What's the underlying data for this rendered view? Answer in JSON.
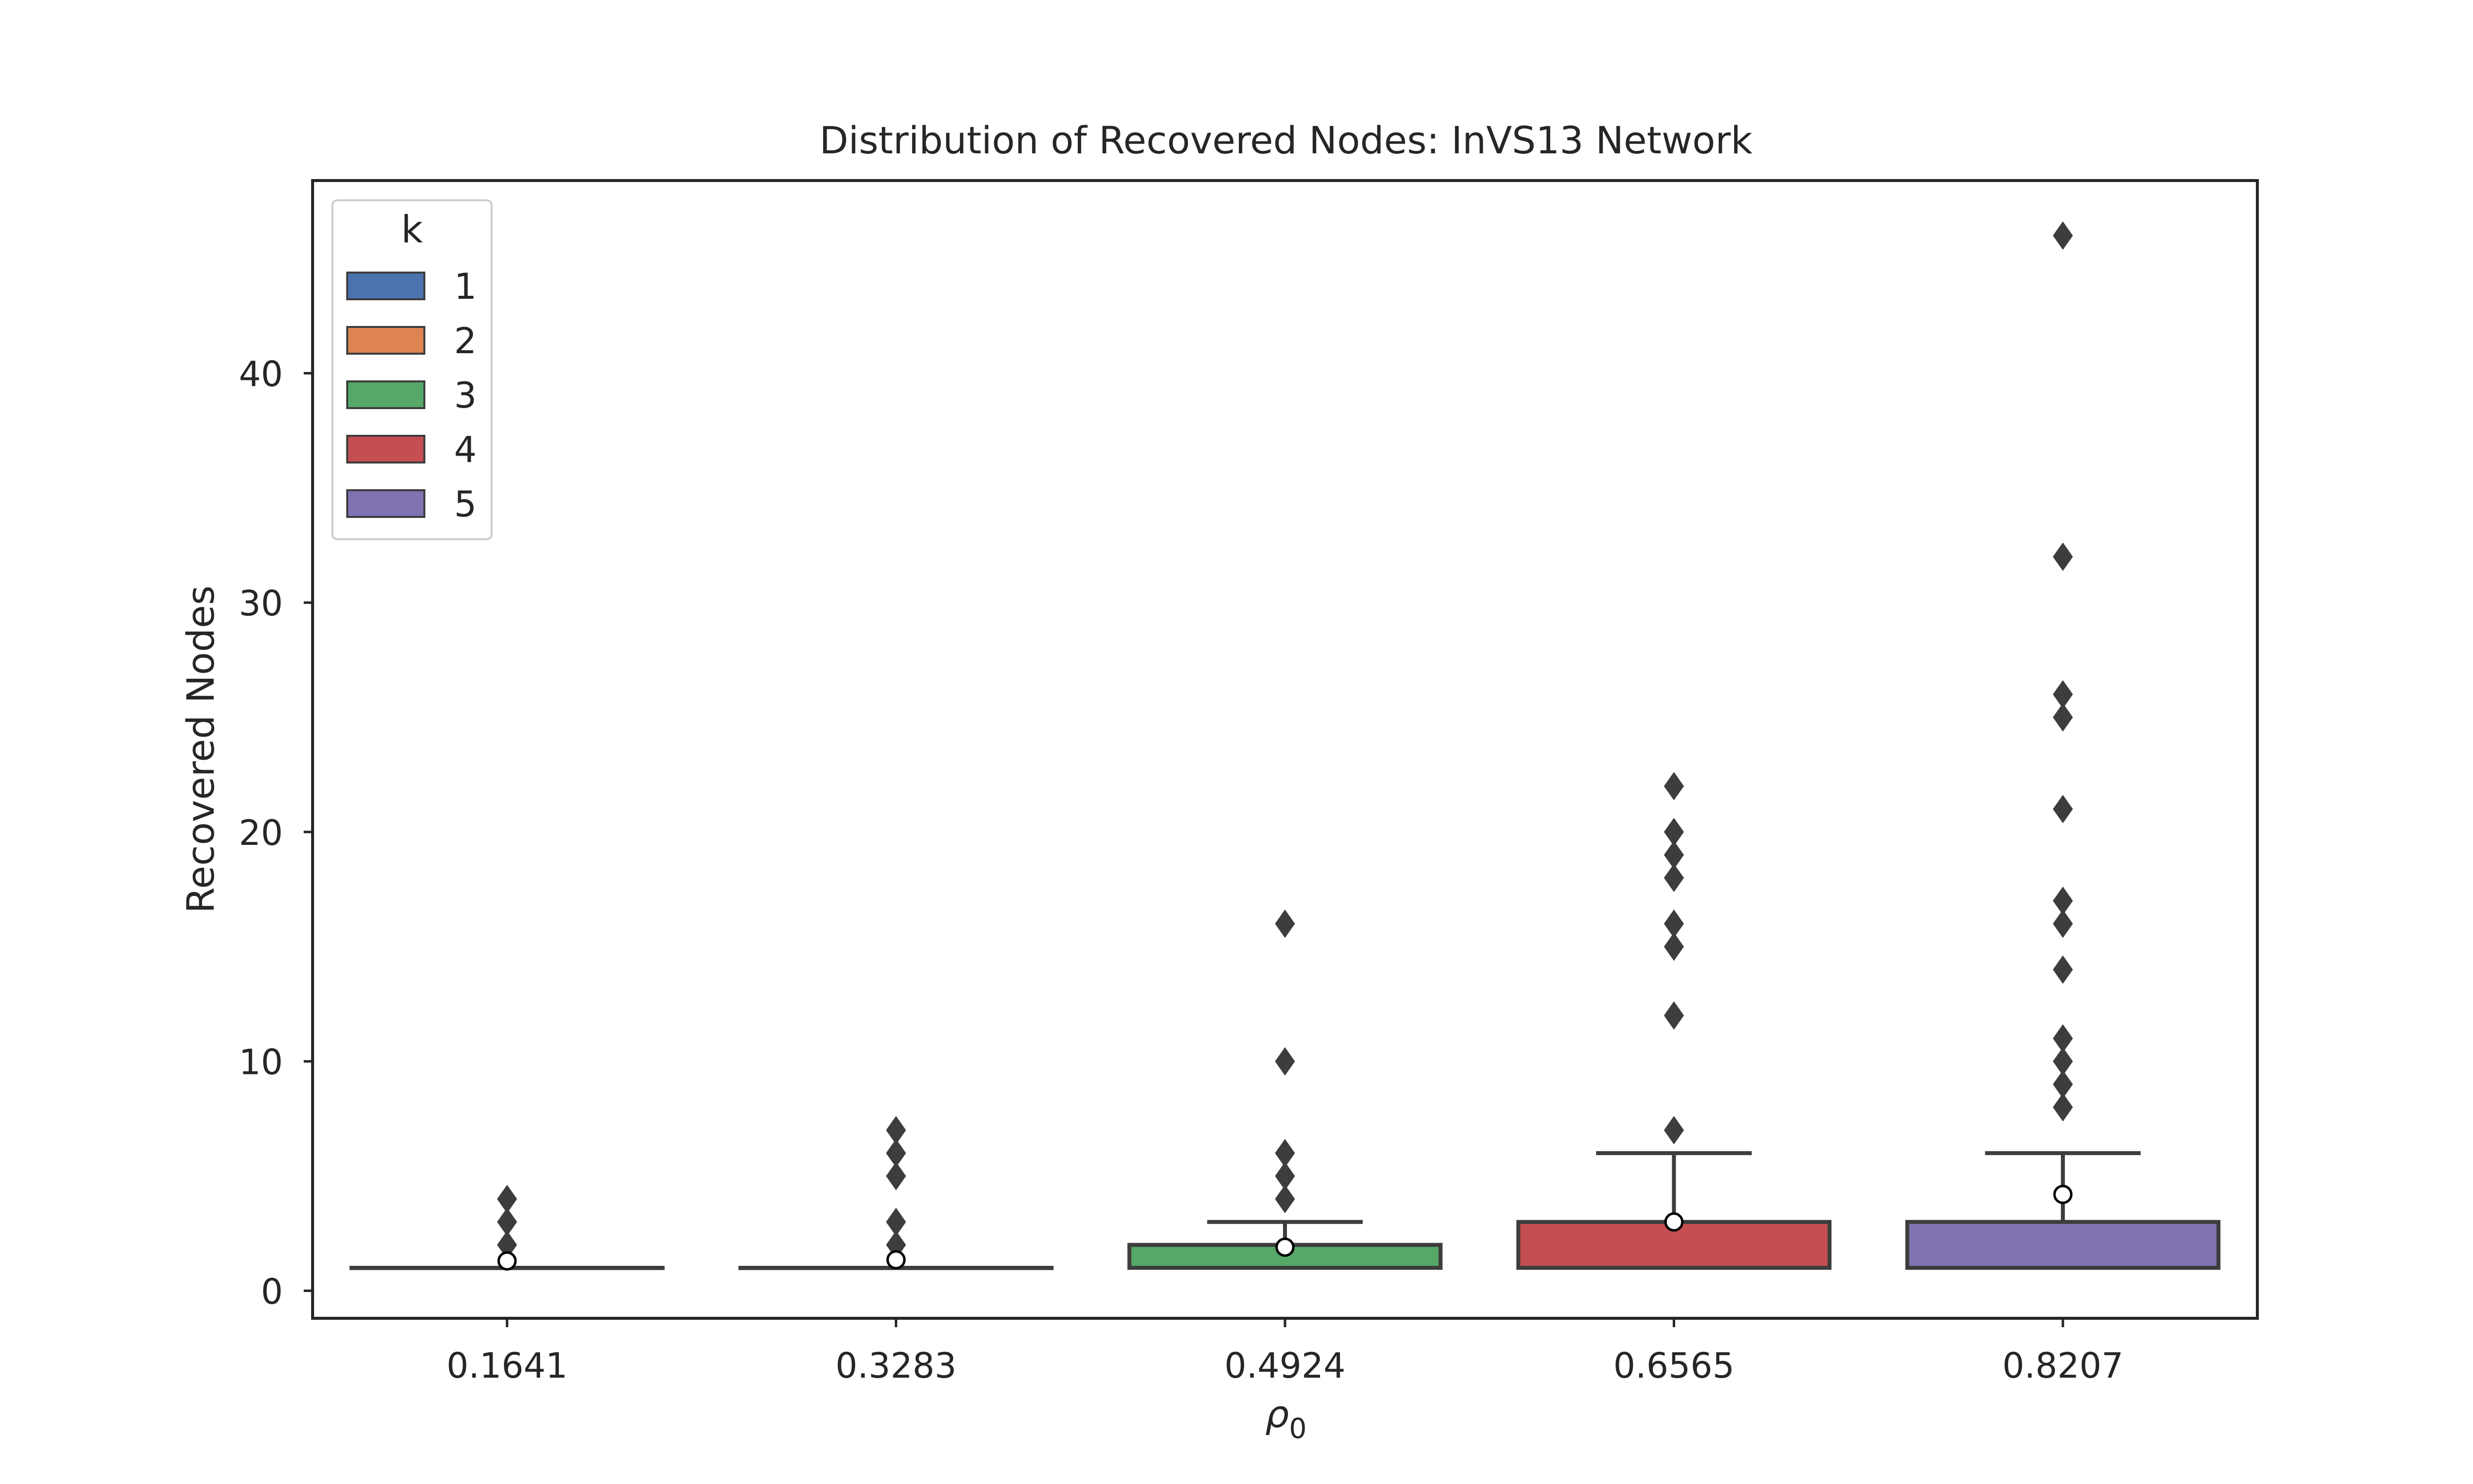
{
  "chart_data": {
    "type": "box",
    "title": "Distribution of Recovered Nodes: InVS13 Network",
    "xlabel_symbol": "ρ",
    "xlabel_subscript": "0",
    "ylabel": "Recovered Nodes",
    "ylim": [
      -1.2,
      48.4
    ],
    "yticks": [
      0,
      10,
      20,
      30,
      40
    ],
    "categories": [
      "0.1641",
      "0.3283",
      "0.4924",
      "0.6565",
      "0.8207"
    ],
    "grid": false,
    "legend": {
      "title": "k",
      "placement": "top-left",
      "entries": [
        {
          "label": "1",
          "color": "#4c72b0"
        },
        {
          "label": "2",
          "color": "#dd8452"
        },
        {
          "label": "3",
          "color": "#55a868"
        },
        {
          "label": "4",
          "color": "#c44e52"
        },
        {
          "label": "5",
          "color": "#8172b3"
        }
      ]
    },
    "boxes": [
      {
        "category": "0.1641",
        "k": "1",
        "q1": 1,
        "median": 1,
        "q3": 1,
        "whisker_low": 1,
        "whisker_high": 1,
        "mean": 1.3,
        "outliers": [
          2,
          3,
          4
        ]
      },
      {
        "category": "0.3283",
        "k": "2",
        "q1": 1,
        "median": 1,
        "q3": 1,
        "whisker_low": 1,
        "whisker_high": 1,
        "mean": 1.35,
        "outliers": [
          2,
          3,
          5,
          6,
          7
        ]
      },
      {
        "category": "0.4924",
        "k": "3",
        "q1": 1,
        "median": 1,
        "q3": 2,
        "whisker_low": 1,
        "whisker_high": 3,
        "mean": 1.9,
        "outliers": [
          4,
          5,
          6,
          10,
          16
        ]
      },
      {
        "category": "0.6565",
        "k": "4",
        "q1": 1,
        "median": 1,
        "q3": 3,
        "whisker_low": 1,
        "whisker_high": 6,
        "mean": 3.0,
        "outliers": [
          7,
          12,
          15,
          16,
          18,
          19,
          20,
          22
        ]
      },
      {
        "category": "0.8207",
        "k": "5",
        "q1": 1,
        "median": 1,
        "q3": 3,
        "whisker_low": 1,
        "whisker_high": 6,
        "mean": 4.2,
        "outliers": [
          8,
          9,
          10,
          11,
          14,
          16,
          17,
          21,
          25,
          26,
          32,
          46
        ]
      }
    ]
  }
}
